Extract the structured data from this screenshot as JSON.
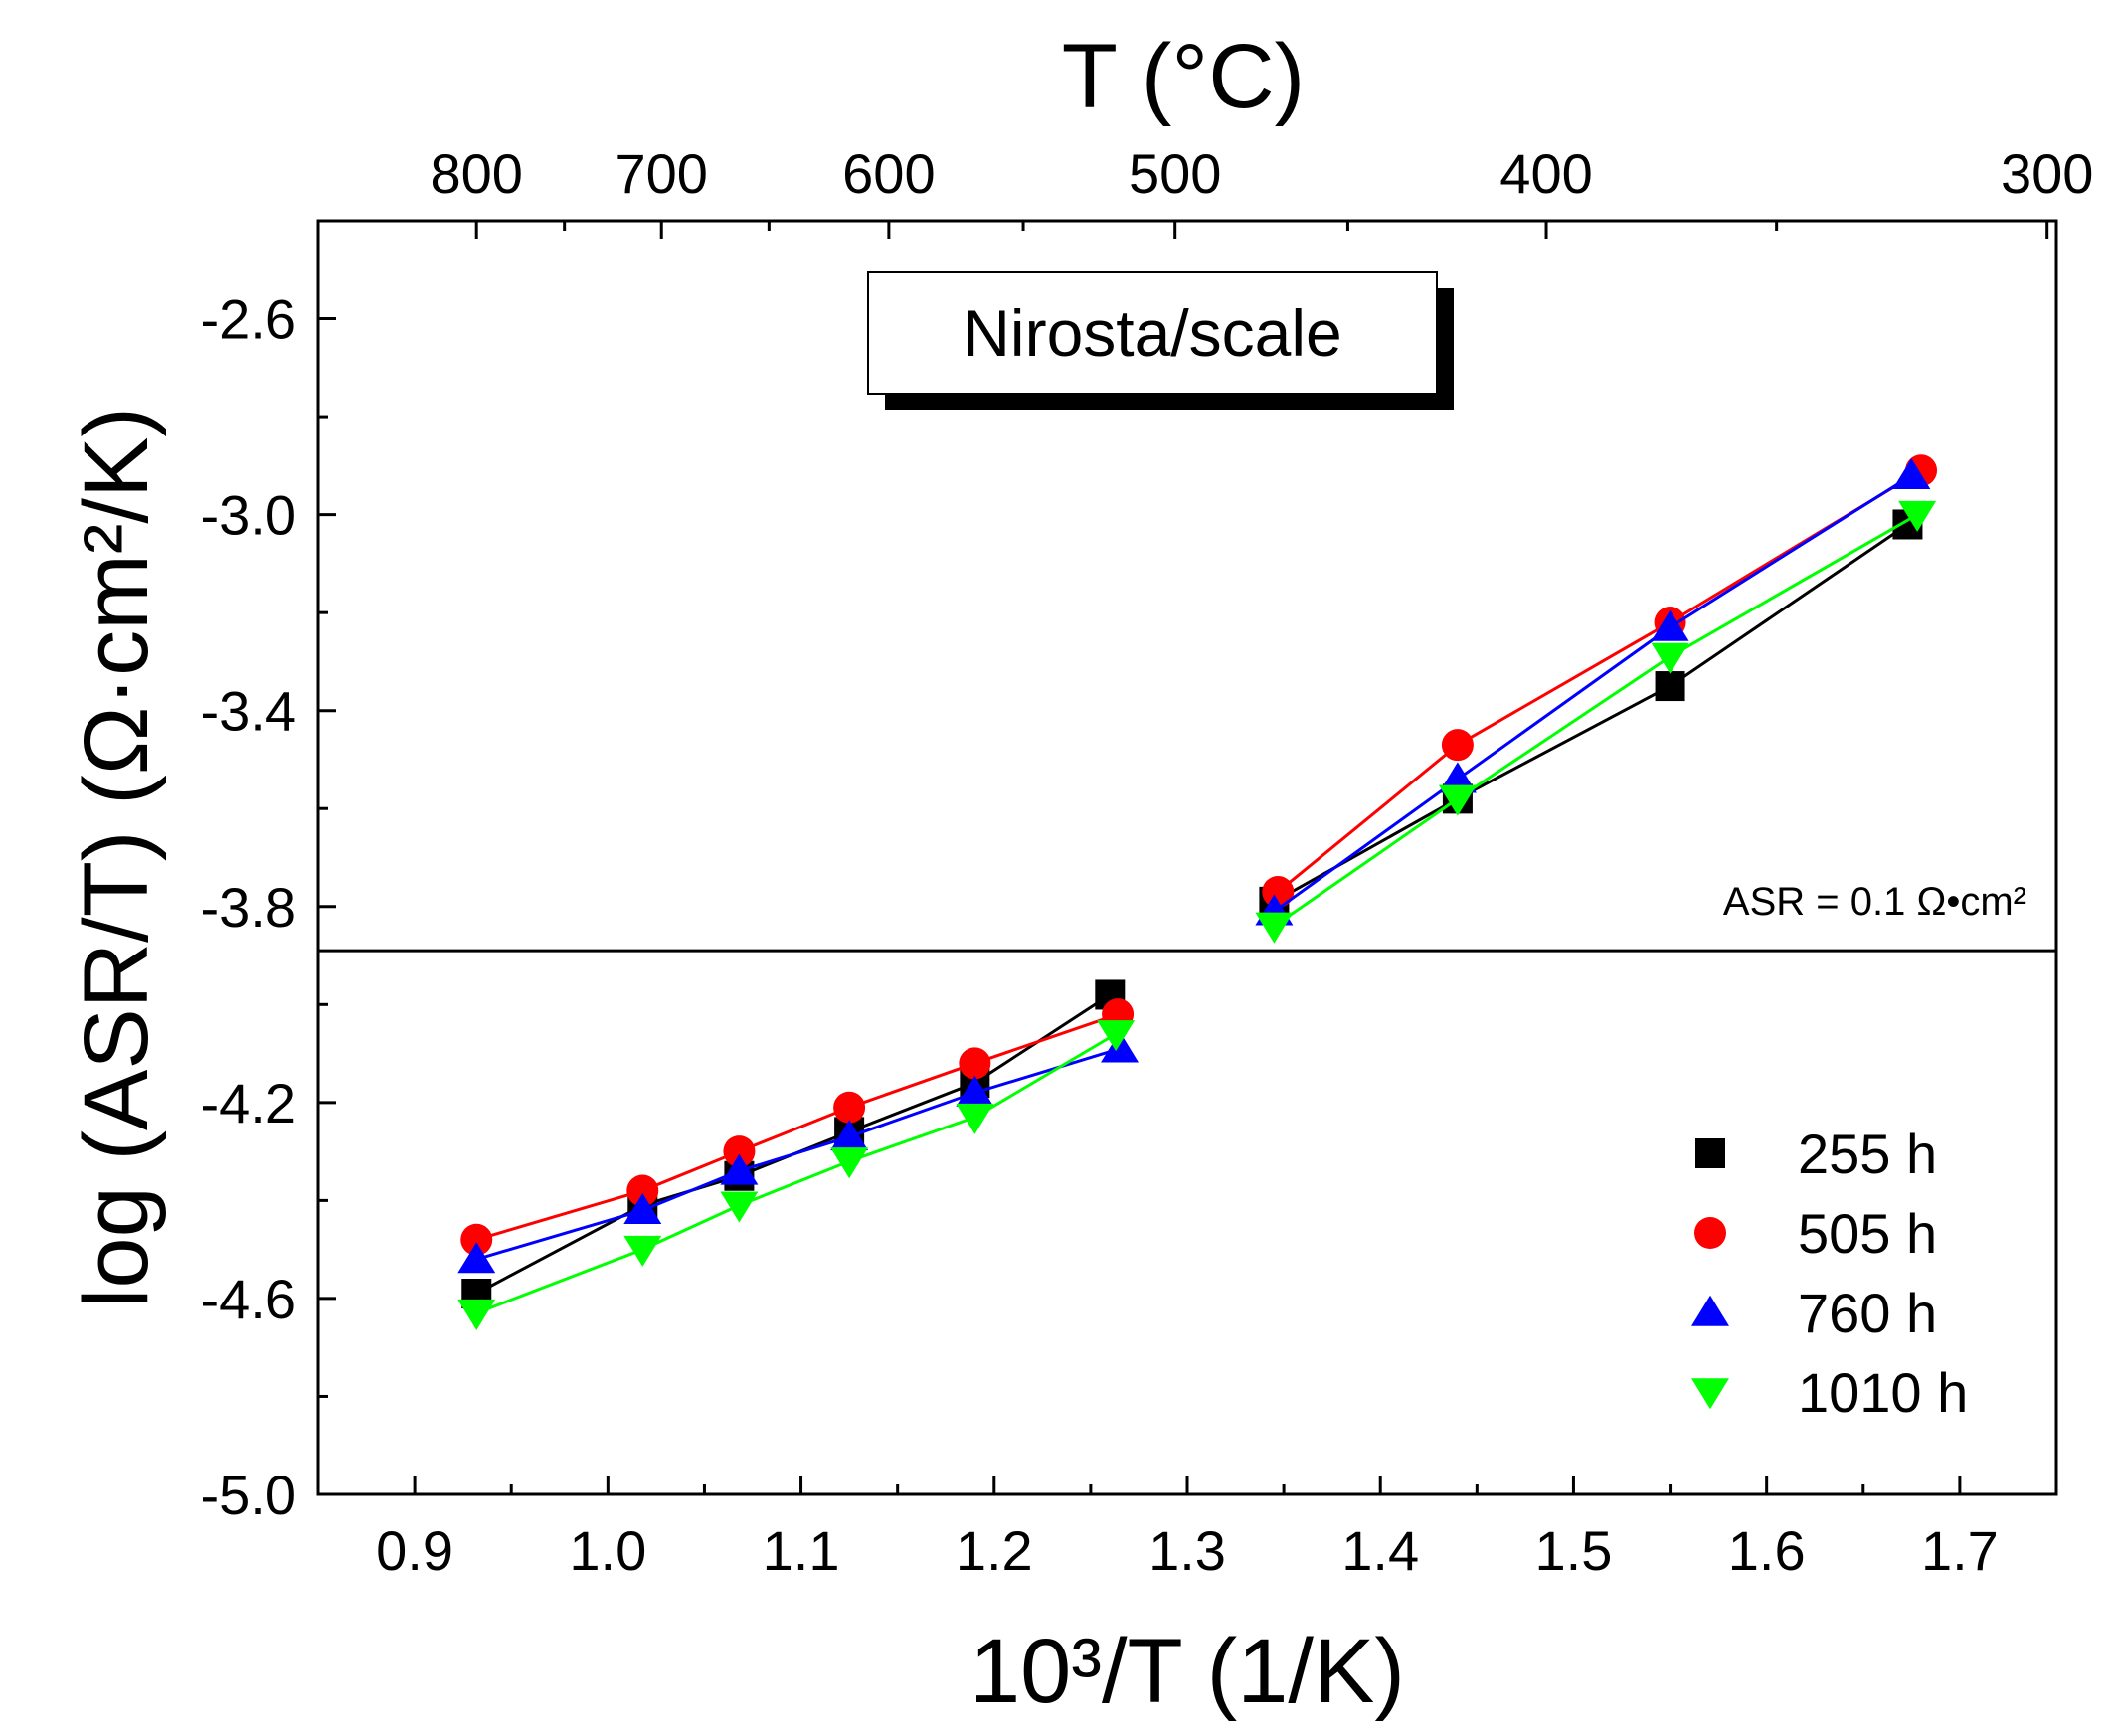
{
  "chart_data": {
    "type": "scatter",
    "title": "",
    "xlabel": "10³/T (1/K)",
    "ylabel": "log (ASR/T) (Ω·cm²/K)",
    "top_xlabel": "T (°C)",
    "xlim": [
      0.85,
      1.75
    ],
    "ylim": [
      -5.0,
      -2.4
    ],
    "x_ticks": [
      0.9,
      1.0,
      1.1,
      1.2,
      1.3,
      1.4,
      1.5,
      1.6,
      1.7
    ],
    "x_tick_labels": [
      "0.9",
      "1.0",
      "1.1",
      "1.2",
      "1.3",
      "1.4",
      "1.5",
      "1.6",
      "1.7"
    ],
    "y_ticks": [
      -5.0,
      -4.6,
      -4.2,
      -3.8,
      -3.4,
      -3.0,
      -2.6
    ],
    "y_tick_labels": [
      "-5.0",
      "-4.6",
      "-4.2",
      "-3.8",
      "-3.4",
      "-3.0",
      "-2.6"
    ],
    "top_ticks_celsius": [
      800,
      700,
      600,
      500,
      400,
      300
    ],
    "top_tick_labels": [
      "800",
      "700",
      "600",
      "500",
      "400",
      "300"
    ],
    "legend_position": "bottom-right",
    "reference_line": {
      "y": -3.89,
      "label": "ASR = 0.1 Ω•cm²"
    },
    "annotation_box": {
      "text": "Nirosta/scale"
    },
    "series": [
      {
        "name": "255 h",
        "color": "#000000",
        "marker": "square",
        "segments": [
          [
            [
              0.932,
              -4.59
            ],
            [
              1.018,
              -4.41
            ],
            [
              1.068,
              -4.35
            ],
            [
              1.125,
              -4.26
            ],
            [
              1.19,
              -4.16
            ],
            [
              1.26,
              -3.98
            ]
          ],
          [
            [
              1.345,
              -3.79
            ],
            [
              1.44,
              -3.58
            ],
            [
              1.55,
              -3.35
            ],
            [
              1.673,
              -3.02
            ]
          ]
        ]
      },
      {
        "name": "505 h",
        "color": "#ff0000",
        "marker": "circle",
        "segments": [
          [
            [
              0.932,
              -4.48
            ],
            [
              1.018,
              -4.38
            ],
            [
              1.068,
              -4.3
            ],
            [
              1.125,
              -4.21
            ],
            [
              1.19,
              -4.12
            ],
            [
              1.264,
              -4.02
            ]
          ],
          [
            [
              1.347,
              -3.77
            ],
            [
              1.44,
              -3.47
            ],
            [
              1.55,
              -3.22
            ],
            [
              1.68,
              -2.91
            ]
          ]
        ]
      },
      {
        "name": "760 h",
        "color": "#0000ff",
        "marker": "triangle-up",
        "segments": [
          [
            [
              0.932,
              -4.52
            ],
            [
              1.018,
              -4.42
            ],
            [
              1.068,
              -4.34
            ],
            [
              1.125,
              -4.27
            ],
            [
              1.19,
              -4.18
            ],
            [
              1.265,
              -4.09
            ]
          ],
          [
            [
              1.345,
              -3.81
            ],
            [
              1.44,
              -3.54
            ],
            [
              1.55,
              -3.23
            ],
            [
              1.675,
              -2.92
            ]
          ]
        ]
      },
      {
        "name": "1010 h",
        "color": "#00ff00",
        "marker": "triangle-down",
        "segments": [
          [
            [
              0.932,
              -4.63
            ],
            [
              1.018,
              -4.5
            ],
            [
              1.068,
              -4.41
            ],
            [
              1.125,
              -4.32
            ],
            [
              1.19,
              -4.23
            ],
            [
              1.263,
              -4.06
            ]
          ],
          [
            [
              1.345,
              -3.84
            ],
            [
              1.44,
              -3.58
            ],
            [
              1.55,
              -3.29
            ],
            [
              1.678,
              -3.0
            ]
          ]
        ]
      }
    ]
  }
}
